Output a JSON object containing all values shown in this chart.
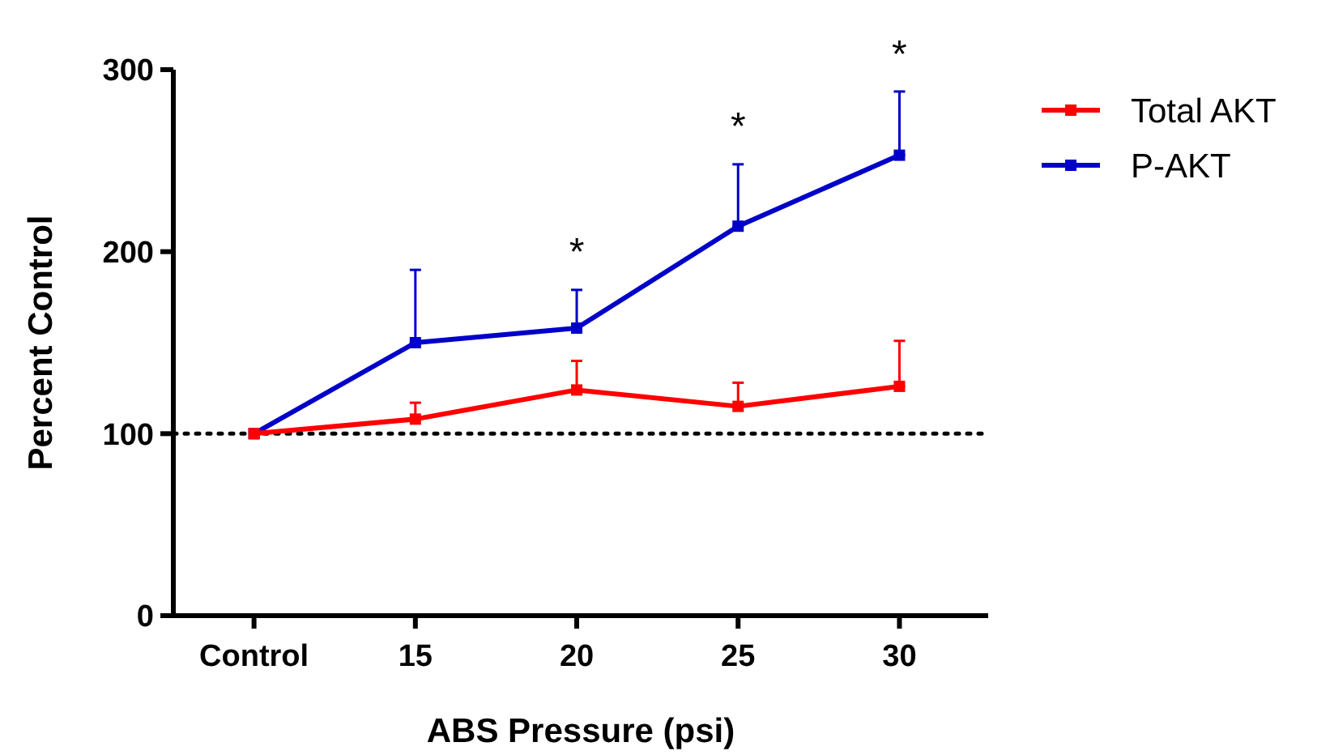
{
  "chart_data": {
    "type": "line",
    "xlabel": "ABS Pressure (psi)",
    "ylabel": "Percent Control",
    "categories": [
      "Control",
      "15",
      "20",
      "25",
      "30"
    ],
    "ylim": [
      0,
      300
    ],
    "yticks": [
      0,
      100,
      200,
      300
    ],
    "series": [
      {
        "name": "Total AKT",
        "color": "#ff0000",
        "values": [
          100,
          108,
          124,
          115,
          126
        ],
        "errors": [
          null,
          [
            108,
            117
          ],
          [
            124,
            140
          ],
          [
            115,
            128
          ],
          [
            126,
            151
          ]
        ]
      },
      {
        "name": "P-AKT",
        "color": "#0000c8",
        "values": [
          100,
          150,
          158,
          214,
          253
        ],
        "errors": [
          null,
          [
            150,
            190
          ],
          [
            158,
            179
          ],
          [
            214,
            248
          ],
          [
            253,
            288
          ]
        ]
      }
    ],
    "ref_lines": [
      {
        "axis": "y",
        "value": 100,
        "color": "#000000",
        "line_style": "dotted"
      }
    ],
    "annotations": [
      "*",
      "*",
      "*"
    ],
    "marker": "square",
    "line_style": "solid",
    "legend": "top right",
    "grid": false
  }
}
